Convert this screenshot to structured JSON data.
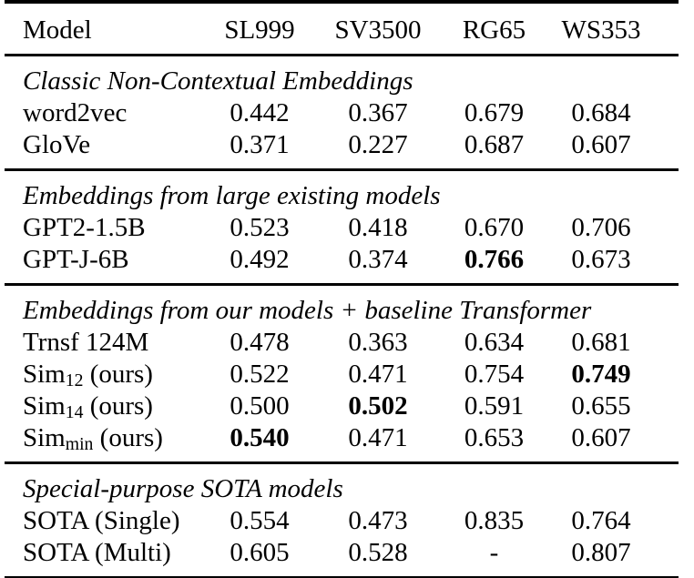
{
  "table": {
    "header": {
      "model_col": "Model",
      "metric_cols": [
        "SL999",
        "SV3500",
        "RG65",
        "WS353"
      ]
    },
    "sections": [
      {
        "title": "Classic Non-Contextual Embeddings",
        "rows": [
          {
            "model": "word2vec",
            "values": [
              "0.442",
              "0.367",
              "0.679",
              "0.684"
            ],
            "bold": [
              false,
              false,
              false,
              false
            ]
          },
          {
            "model": "GloVe",
            "values": [
              "0.371",
              "0.227",
              "0.687",
              "0.607"
            ],
            "bold": [
              false,
              false,
              false,
              false
            ]
          }
        ]
      },
      {
        "title": "Embeddings from large existing models",
        "rows": [
          {
            "model": "GPT2-1.5B",
            "values": [
              "0.523",
              "0.418",
              "0.670",
              "0.706"
            ],
            "bold": [
              false,
              false,
              false,
              false
            ]
          },
          {
            "model": "GPT-J-6B",
            "values": [
              "0.492",
              "0.374",
              "0.766",
              "0.673"
            ],
            "bold": [
              false,
              false,
              true,
              false
            ]
          }
        ]
      },
      {
        "title": "Embeddings from our models + baseline Transformer",
        "rows": [
          {
            "model": "Trnsf 124M",
            "values": [
              "0.478",
              "0.363",
              "0.634",
              "0.681"
            ],
            "bold": [
              false,
              false,
              false,
              false
            ]
          },
          {
            "model": "Sim_{12} (ours)",
            "values": [
              "0.522",
              "0.471",
              "0.754",
              "0.749"
            ],
            "bold": [
              false,
              false,
              false,
              true
            ]
          },
          {
            "model": "Sim_{14} (ours)",
            "values": [
              "0.500",
              "0.502",
              "0.591",
              "0.655"
            ],
            "bold": [
              false,
              true,
              false,
              false
            ]
          },
          {
            "model": "Sim_{min} (ours)",
            "values": [
              "0.540",
              "0.471",
              "0.653",
              "0.607"
            ],
            "bold": [
              true,
              false,
              false,
              false
            ]
          }
        ]
      },
      {
        "title": "Special-purpose SOTA models",
        "rows": [
          {
            "model": "SOTA (Single)",
            "values": [
              "0.554",
              "0.473",
              "0.835",
              "0.764"
            ],
            "bold": [
              false,
              false,
              false,
              false
            ]
          },
          {
            "model": "SOTA (Multi)",
            "values": [
              "0.605",
              "0.528",
              "-",
              "0.807"
            ],
            "bold": [
              false,
              false,
              false,
              false
            ]
          }
        ]
      }
    ]
  },
  "chart_data": {
    "type": "table",
    "title": "Word similarity benchmark results",
    "columns": [
      "Model",
      "SL999",
      "SV3500",
      "RG65",
      "WS353"
    ],
    "rows": [
      [
        "word2vec",
        0.442,
        0.367,
        0.679,
        0.684
      ],
      [
        "GloVe",
        0.371,
        0.227,
        0.687,
        0.607
      ],
      [
        "GPT2-1.5B",
        0.523,
        0.418,
        0.67,
        0.706
      ],
      [
        "GPT-J-6B",
        0.492,
        0.374,
        0.766,
        0.673
      ],
      [
        "Trnsf 124M",
        0.478,
        0.363,
        0.634,
        0.681
      ],
      [
        "Sim12 (ours)",
        0.522,
        0.471,
        0.754,
        0.749
      ],
      [
        "Sim14 (ours)",
        0.5,
        0.502,
        0.591,
        0.655
      ],
      [
        "Simmin (ours)",
        0.54,
        0.471,
        0.653,
        0.607
      ],
      [
        "SOTA (Single)",
        0.554,
        0.473,
        0.835,
        0.764
      ],
      [
        "SOTA (Multi)",
        0.605,
        0.528,
        null,
        0.807
      ]
    ]
  },
  "colors": {
    "text": "#000000",
    "background": "#ffffff",
    "rule": "#000000"
  }
}
